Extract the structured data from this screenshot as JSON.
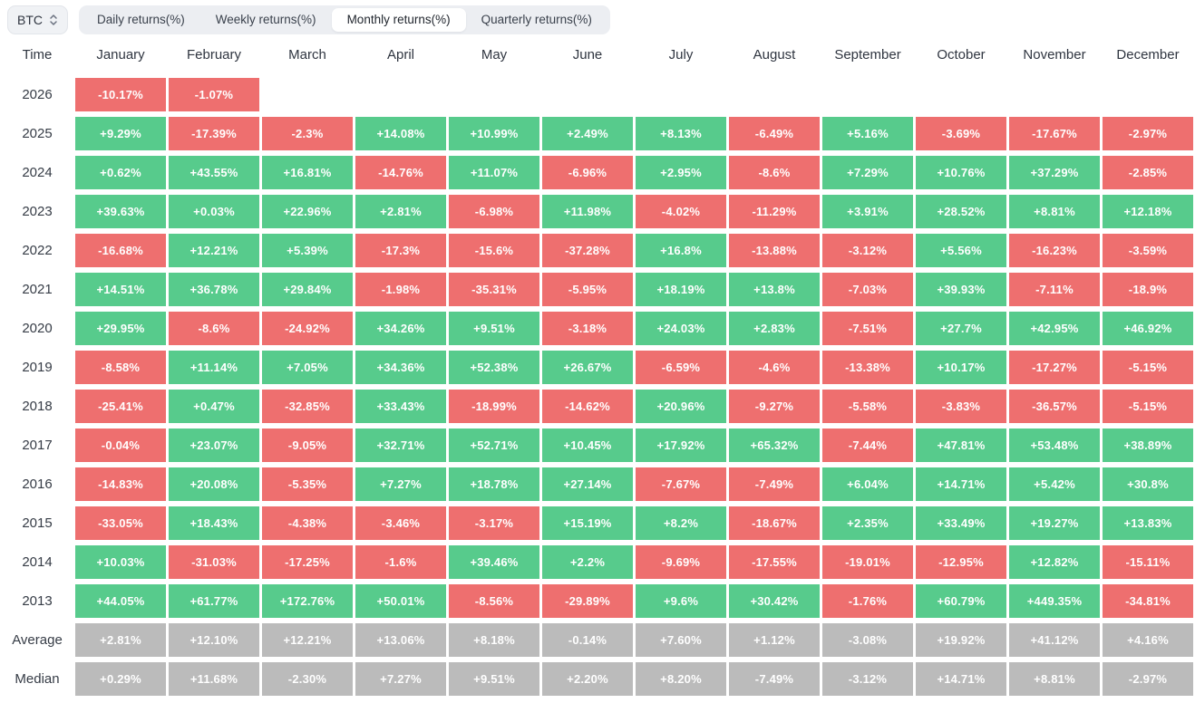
{
  "toolbar": {
    "symbol_selector": {
      "value": "BTC",
      "icon": "updown-chevron-icon"
    },
    "tabs": [
      {
        "label": "Daily returns(%)",
        "active": false
      },
      {
        "label": "Weekly returns(%)",
        "active": false
      },
      {
        "label": "Monthly returns(%)",
        "active": true
      },
      {
        "label": "Quarterly returns(%)",
        "active": false
      }
    ]
  },
  "colors": {
    "positive": "#57cb8c",
    "negative": "#ee6f6f",
    "neutral": "#bbbbbb",
    "cell_text": "#ffffff",
    "tab_strip_bg": "#eceef2",
    "active_tab_bg": "#ffffff",
    "text_dark": "#2f3540"
  },
  "chart_data": {
    "type": "heatmap",
    "title": "Monthly returns(%)",
    "symbol": "BTC",
    "row_header": "Time",
    "legend_position": "none",
    "columns": [
      "January",
      "February",
      "March",
      "April",
      "May",
      "June",
      "July",
      "August",
      "September",
      "October",
      "November",
      "December"
    ],
    "rows": [
      {
        "label": "2026",
        "kind": "year",
        "cells": [
          "-10.17%",
          "-1.07%",
          null,
          null,
          null,
          null,
          null,
          null,
          null,
          null,
          null,
          null
        ]
      },
      {
        "label": "2025",
        "kind": "year",
        "cells": [
          "+9.29%",
          "-17.39%",
          "-2.3%",
          "+14.08%",
          "+10.99%",
          "+2.49%",
          "+8.13%",
          "-6.49%",
          "+5.16%",
          "-3.69%",
          "-17.67%",
          "-2.97%"
        ]
      },
      {
        "label": "2024",
        "kind": "year",
        "cells": [
          "+0.62%",
          "+43.55%",
          "+16.81%",
          "-14.76%",
          "+11.07%",
          "-6.96%",
          "+2.95%",
          "-8.6%",
          "+7.29%",
          "+10.76%",
          "+37.29%",
          "-2.85%"
        ]
      },
      {
        "label": "2023",
        "kind": "year",
        "cells": [
          "+39.63%",
          "+0.03%",
          "+22.96%",
          "+2.81%",
          "-6.98%",
          "+11.98%",
          "-4.02%",
          "-11.29%",
          "+3.91%",
          "+28.52%",
          "+8.81%",
          "+12.18%"
        ]
      },
      {
        "label": "2022",
        "kind": "year",
        "cells": [
          "-16.68%",
          "+12.21%",
          "+5.39%",
          "-17.3%",
          "-15.6%",
          "-37.28%",
          "+16.8%",
          "-13.88%",
          "-3.12%",
          "+5.56%",
          "-16.23%",
          "-3.59%"
        ]
      },
      {
        "label": "2021",
        "kind": "year",
        "cells": [
          "+14.51%",
          "+36.78%",
          "+29.84%",
          "-1.98%",
          "-35.31%",
          "-5.95%",
          "+18.19%",
          "+13.8%",
          "-7.03%",
          "+39.93%",
          "-7.11%",
          "-18.9%"
        ]
      },
      {
        "label": "2020",
        "kind": "year",
        "cells": [
          "+29.95%",
          "-8.6%",
          "-24.92%",
          "+34.26%",
          "+9.51%",
          "-3.18%",
          "+24.03%",
          "+2.83%",
          "-7.51%",
          "+27.7%",
          "+42.95%",
          "+46.92%"
        ]
      },
      {
        "label": "2019",
        "kind": "year",
        "cells": [
          "-8.58%",
          "+11.14%",
          "+7.05%",
          "+34.36%",
          "+52.38%",
          "+26.67%",
          "-6.59%",
          "-4.6%",
          "-13.38%",
          "+10.17%",
          "-17.27%",
          "-5.15%"
        ]
      },
      {
        "label": "2018",
        "kind": "year",
        "cells": [
          "-25.41%",
          "+0.47%",
          "-32.85%",
          "+33.43%",
          "-18.99%",
          "-14.62%",
          "+20.96%",
          "-9.27%",
          "-5.58%",
          "-3.83%",
          "-36.57%",
          "-5.15%"
        ]
      },
      {
        "label": "2017",
        "kind": "year",
        "cells": [
          "-0.04%",
          "+23.07%",
          "-9.05%",
          "+32.71%",
          "+52.71%",
          "+10.45%",
          "+17.92%",
          "+65.32%",
          "-7.44%",
          "+47.81%",
          "+53.48%",
          "+38.89%"
        ]
      },
      {
        "label": "2016",
        "kind": "year",
        "cells": [
          "-14.83%",
          "+20.08%",
          "-5.35%",
          "+7.27%",
          "+18.78%",
          "+27.14%",
          "-7.67%",
          "-7.49%",
          "+6.04%",
          "+14.71%",
          "+5.42%",
          "+30.8%"
        ]
      },
      {
        "label": "2015",
        "kind": "year",
        "cells": [
          "-33.05%",
          "+18.43%",
          "-4.38%",
          "-3.46%",
          "-3.17%",
          "+15.19%",
          "+8.2%",
          "-18.67%",
          "+2.35%",
          "+33.49%",
          "+19.27%",
          "+13.83%"
        ]
      },
      {
        "label": "2014",
        "kind": "year",
        "cells": [
          "+10.03%",
          "-31.03%",
          "-17.25%",
          "-1.6%",
          "+39.46%",
          "+2.2%",
          "-9.69%",
          "-17.55%",
          "-19.01%",
          "-12.95%",
          "+12.82%",
          "-15.11%"
        ]
      },
      {
        "label": "2013",
        "kind": "year",
        "cells": [
          "+44.05%",
          "+61.77%",
          "+172.76%",
          "+50.01%",
          "-8.56%",
          "-29.89%",
          "+9.6%",
          "+30.42%",
          "-1.76%",
          "+60.79%",
          "+449.35%",
          "-34.81%"
        ]
      },
      {
        "label": "Average",
        "kind": "summary",
        "cells": [
          "+2.81%",
          "+12.10%",
          "+12.21%",
          "+13.06%",
          "+8.18%",
          "-0.14%",
          "+7.60%",
          "+1.12%",
          "-3.08%",
          "+19.92%",
          "+41.12%",
          "+4.16%"
        ]
      },
      {
        "label": "Median",
        "kind": "summary",
        "cells": [
          "+0.29%",
          "+11.68%",
          "-2.30%",
          "+7.27%",
          "+9.51%",
          "+2.20%",
          "+8.20%",
          "-7.49%",
          "-3.12%",
          "+14.71%",
          "+8.81%",
          "-2.97%"
        ]
      }
    ]
  }
}
